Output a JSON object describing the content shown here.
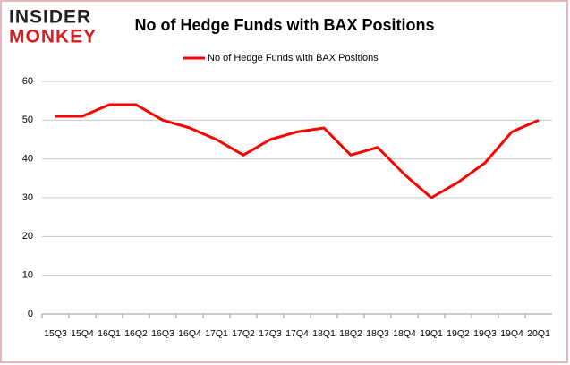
{
  "chart_data": {
    "type": "line",
    "logo": [
      "INSIDER",
      "MONKEY"
    ],
    "title": "No of Hedge Funds with BAX Positions",
    "categories": [
      "15Q3",
      "15Q4",
      "16Q1",
      "16Q2",
      "16Q3",
      "16Q4",
      "17Q1",
      "17Q2",
      "17Q3",
      "17Q4",
      "18Q1",
      "18Q2",
      "18Q3",
      "18Q4",
      "19Q1",
      "19Q2",
      "19Q3",
      "19Q4",
      "20Q1"
    ],
    "series": [
      {
        "name": "No of Hedge Funds with BAX Positions",
        "color": "#ff0000",
        "values": [
          51,
          51,
          54,
          54,
          50,
          48,
          45,
          41,
          45,
          47,
          48,
          41,
          43,
          36,
          30,
          34,
          39,
          47,
          50
        ]
      }
    ],
    "ylim": [
      0,
      60
    ],
    "yticks": [
      0,
      10,
      20,
      30,
      40,
      50,
      60
    ],
    "grid": true,
    "legend": "top"
  }
}
